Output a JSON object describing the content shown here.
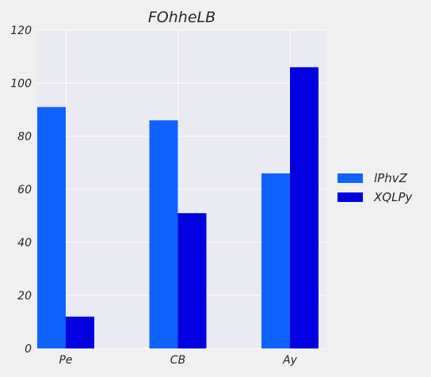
{
  "chart_data": {
    "type": "bar",
    "title": "FOhheLB",
    "xlabel": "",
    "ylabel": "",
    "categories": [
      "Pe",
      "CB",
      "Ay"
    ],
    "series": [
      {
        "name": "lPhvZ",
        "values": [
          91,
          86,
          66
        ],
        "color": "#0f62fe"
      },
      {
        "name": "XQLPy",
        "values": [
          12,
          51,
          106
        ],
        "color": "#0000e0"
      }
    ],
    "ylim": [
      0,
      120
    ],
    "yticks": [
      0,
      20,
      40,
      60,
      80,
      100,
      120
    ],
    "grid": true,
    "legend_position": "right"
  },
  "colors": {
    "figure_background": "#f0f0f0",
    "plot_background": "#eaeaf2",
    "grid": "#ffffff",
    "text": "#262626"
  }
}
